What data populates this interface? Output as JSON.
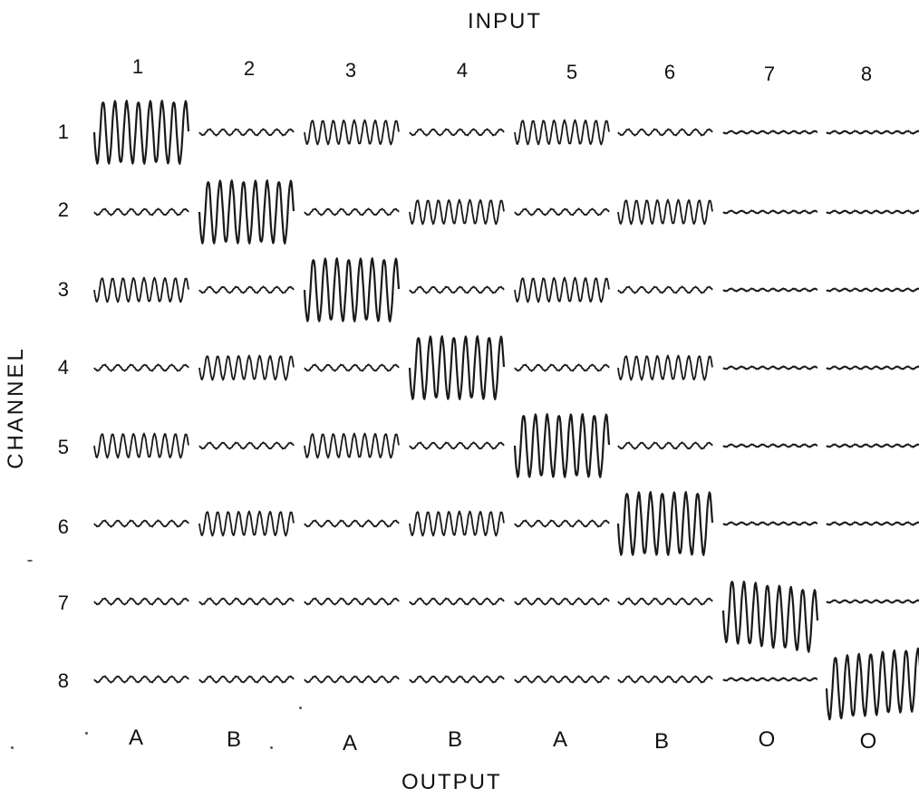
{
  "figure": {
    "top_label": "INPUT",
    "left_label": "CHANNEL",
    "bottom_label": "OUTPUT",
    "input_numbers": [
      "1",
      "2",
      "3",
      "4",
      "5",
      "6",
      "7",
      "8"
    ],
    "channel_numbers": [
      "1",
      "2",
      "3",
      "4",
      "5",
      "6",
      "7",
      "8"
    ],
    "output_labels": [
      "A",
      "B",
      "A",
      "B",
      "A",
      "B",
      "O",
      "O"
    ],
    "trace_color": "#1a1a1a",
    "amplitude_levels": [
      [
        "large",
        "small",
        "medium",
        "small",
        "medium",
        "small",
        "flat",
        "flat"
      ],
      [
        "small",
        "large",
        "small",
        "medium",
        "small",
        "medium",
        "flat",
        "flat"
      ],
      [
        "medium",
        "small",
        "large",
        "small",
        "medium",
        "small",
        "flat",
        "flat"
      ],
      [
        "small",
        "medium",
        "small",
        "large",
        "small",
        "medium",
        "flat",
        "flat"
      ],
      [
        "medium",
        "small",
        "medium",
        "small",
        "large",
        "small",
        "flat",
        "flat"
      ],
      [
        "small",
        "medium",
        "small",
        "medium",
        "small",
        "large",
        "flat",
        "flat"
      ],
      [
        "small",
        "small",
        "small",
        "small",
        "small",
        "small",
        "large",
        "flat"
      ],
      [
        "small",
        "small",
        "small",
        "small",
        "small",
        "small",
        "flat",
        "large"
      ]
    ]
  }
}
